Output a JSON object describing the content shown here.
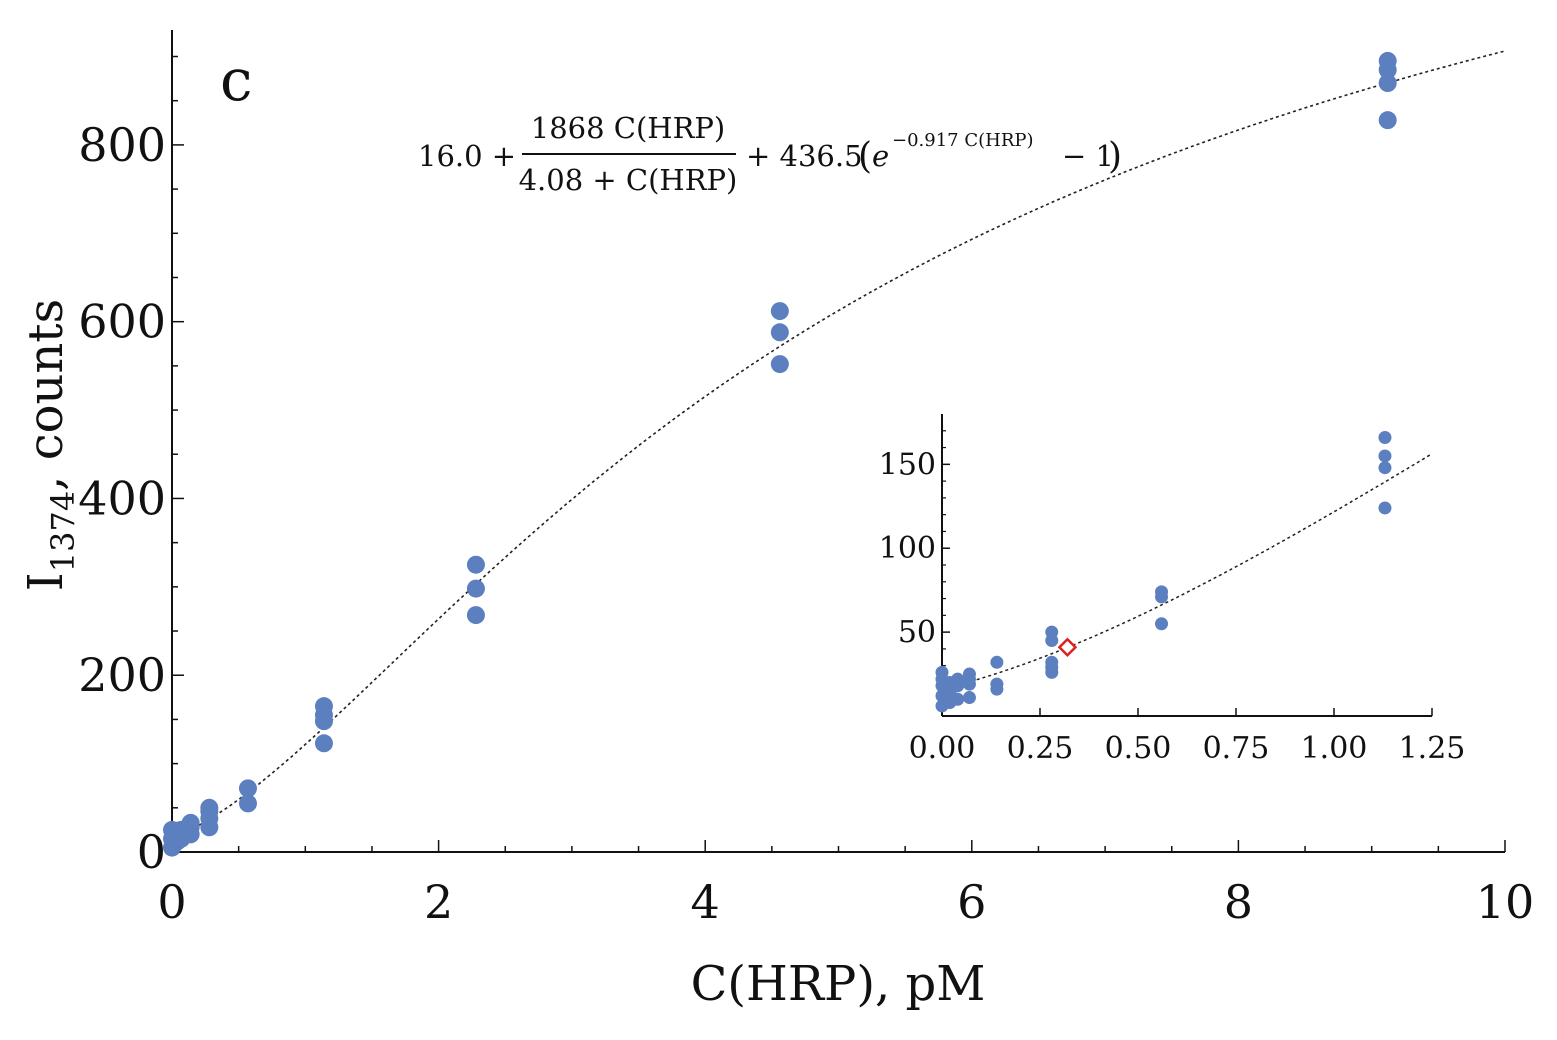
{
  "panel_label": "c",
  "formula": {
    "constant": "16.0 +",
    "numerator": "1868 C(HRP)",
    "denominator": "4.08 + C(HRP)",
    "term": "+ 436.5",
    "exp_base": "e",
    "exp_power": "−0.917 C(HRP)",
    "exp_tail": "− 1"
  },
  "colors": {
    "points": "#5b7fbf",
    "fit_line": "#222222",
    "highlight": "#e02020",
    "axes": "#111111"
  },
  "chart_data": [
    {
      "type": "scatter",
      "name": "main",
      "xlabel": "C(HRP), pM",
      "ylabel_main": "I",
      "ylabel_sub": "1374",
      "ylabel_rest": ", counts",
      "xlim": [
        0,
        10
      ],
      "ylim": [
        0,
        930
      ],
      "xticks": [
        0,
        2,
        4,
        6,
        8,
        10
      ],
      "yticks": [
        0,
        200,
        400,
        600,
        800
      ],
      "points": [
        [
          0.0,
          5
        ],
        [
          0.0,
          15
        ],
        [
          0.0,
          25
        ],
        [
          0.02,
          10
        ],
        [
          0.02,
          20
        ],
        [
          0.04,
          12
        ],
        [
          0.04,
          24
        ],
        [
          0.07,
          15
        ],
        [
          0.07,
          25
        ],
        [
          0.14,
          20
        ],
        [
          0.14,
          28
        ],
        [
          0.14,
          33
        ],
        [
          0.28,
          28
        ],
        [
          0.28,
          38
        ],
        [
          0.28,
          46
        ],
        [
          0.28,
          50
        ],
        [
          0.57,
          55
        ],
        [
          0.57,
          72
        ],
        [
          1.14,
          123
        ],
        [
          1.14,
          148
        ],
        [
          1.14,
          155
        ],
        [
          1.14,
          165
        ],
        [
          2.28,
          268
        ],
        [
          2.28,
          298
        ],
        [
          2.28,
          325
        ],
        [
          4.56,
          552
        ],
        [
          4.56,
          588
        ],
        [
          4.56,
          612
        ],
        [
          9.12,
          828
        ],
        [
          9.12,
          870
        ],
        [
          9.12,
          885
        ],
        [
          9.12,
          895
        ]
      ],
      "fit": {
        "a": 16.0,
        "b": 1868,
        "c": 4.08,
        "d": 436.5,
        "k": 0.917
      }
    },
    {
      "type": "scatter",
      "name": "inset",
      "xlim": [
        0,
        1.25
      ],
      "ylim": [
        0,
        180
      ],
      "xticks": [
        0.0,
        0.25,
        0.5,
        0.75,
        1.0,
        1.25
      ],
      "xtick_labels": [
        "0.00",
        "0.25",
        "0.50",
        "0.75",
        "1.00",
        "1.25"
      ],
      "yticks": [
        50,
        100,
        150
      ],
      "yticks_minor": [
        10,
        20,
        30,
        40,
        60,
        70,
        80,
        90,
        110,
        120,
        130,
        140,
        160,
        170
      ],
      "fit_xrange": [
        0,
        1.25
      ],
      "points": [
        [
          0.0,
          6
        ],
        [
          0.0,
          12
        ],
        [
          0.0,
          18
        ],
        [
          0.0,
          22
        ],
        [
          0.0,
          26
        ],
        [
          0.02,
          8
        ],
        [
          0.02,
          14
        ],
        [
          0.02,
          20
        ],
        [
          0.04,
          10
        ],
        [
          0.04,
          18
        ],
        [
          0.04,
          22
        ],
        [
          0.07,
          11
        ],
        [
          0.07,
          19
        ],
        [
          0.07,
          22
        ],
        [
          0.07,
          25
        ],
        [
          0.14,
          16
        ],
        [
          0.14,
          19
        ],
        [
          0.14,
          32
        ],
        [
          0.28,
          26
        ],
        [
          0.28,
          29
        ],
        [
          0.28,
          32
        ],
        [
          0.28,
          45
        ],
        [
          0.28,
          50
        ],
        [
          0.56,
          55
        ],
        [
          0.56,
          71
        ],
        [
          0.56,
          74
        ],
        [
          1.13,
          124
        ],
        [
          1.13,
          148
        ],
        [
          1.13,
          155
        ],
        [
          1.13,
          166
        ]
      ],
      "highlight_point": [
        0.32,
        41
      ]
    }
  ]
}
